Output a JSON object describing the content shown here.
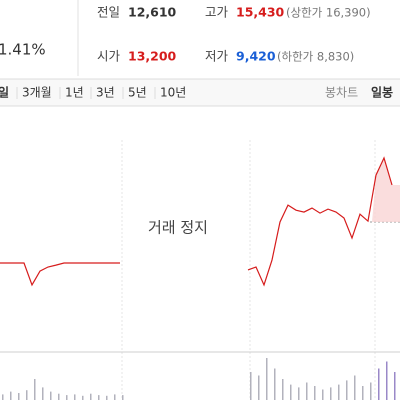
{
  "summary": {
    "change_rate": "1.41%",
    "prev_close": {
      "label": "전일",
      "value": "12,610"
    },
    "high": {
      "label": "고가",
      "value": "15,430",
      "limit": "(상한가 16,390)"
    },
    "open": {
      "label": "시가",
      "value": "13,200"
    },
    "low": {
      "label": "저가",
      "value": "9,420",
      "limit": "(하한가 8,830)"
    }
  },
  "tabs": {
    "periods": [
      "일",
      "3개월",
      "1년",
      "3년",
      "5년",
      "10년"
    ],
    "chart_kind": "봉차트",
    "interval": "일봉"
  },
  "chart_data": {
    "type": "line",
    "annotation": "거래 정지",
    "categories": [
      null,
      null,
      null,
      null,
      null,
      null,
      null,
      null,
      null,
      null,
      null,
      null,
      null,
      null,
      null,
      null,
      null,
      null,
      null,
      null,
      null,
      null,
      null,
      null,
      null,
      null,
      null,
      null,
      null,
      null,
      null,
      null,
      null,
      null,
      null,
      null,
      null,
      null,
      null,
      null,
      null,
      null,
      null,
      null,
      null,
      null,
      null,
      null,
      null,
      null
    ],
    "values": [
      10460,
      10460,
      10460,
      10460,
      9420,
      10080,
      10270,
      10360,
      10460,
      10460,
      10460,
      10460,
      10460,
      10460,
      10460,
      10460,
      null,
      null,
      null,
      null,
      null,
      null,
      null,
      null,
      null,
      null,
      null,
      null,
      null,
      null,
      null,
      10130,
      10270,
      9420,
      10600,
      12400,
      13200,
      12960,
      12870,
      13060,
      12820,
      13010,
      12870,
      12590,
      11640,
      12770,
      12440,
      14620,
      15430,
      14150
    ],
    "color": "#d61c1c",
    "ylim": [
      6580,
      16280
    ],
    "volume": {
      "color": "#b2b2bc",
      "values": [
        8,
        12,
        10,
        14,
        30,
        18,
        12,
        9,
        7,
        8,
        6,
        9,
        7,
        6,
        8,
        7,
        null,
        null,
        null,
        null,
        null,
        null,
        null,
        null,
        null,
        null,
        null,
        null,
        null,
        null,
        null,
        40,
        35,
        60,
        45,
        30,
        22,
        18,
        25,
        20,
        15,
        18,
        22,
        28,
        35,
        20,
        25,
        45,
        55,
        40
      ]
    }
  }
}
